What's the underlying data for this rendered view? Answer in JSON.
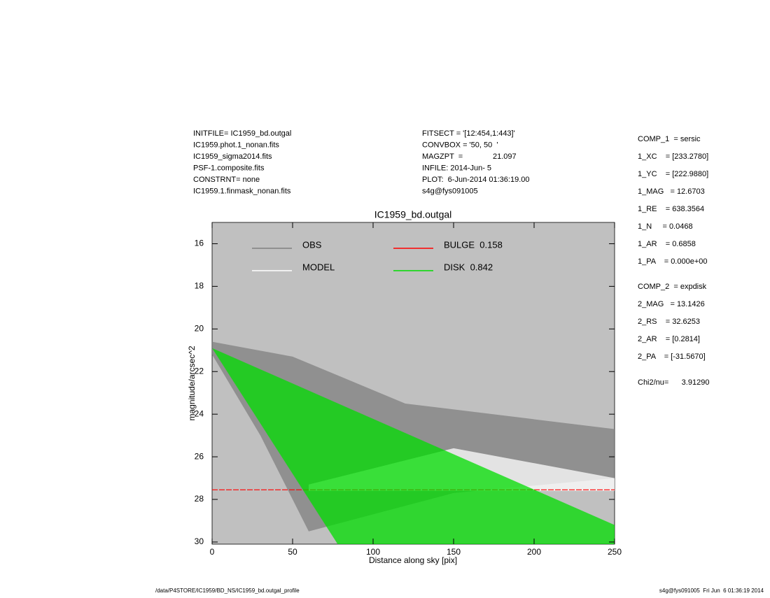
{
  "header": {
    "left": [
      "INITFILE= IC1959_bd.outgal",
      "IC1959.phot.1_nonan.fits",
      "IC1959_sigma2014.fits",
      "PSF-1.composite.fits",
      "CONSTRNT= none",
      "IC1959.1.finmask_nonan.fits"
    ],
    "middle": [
      "FITSECT = '[12:454,1:443]'",
      "CONVBOX = '50, 50  '",
      "MAGZPT  =              21.097",
      "INFILE: 2014-Jun- 5",
      "PLOT:  6-Jun-2014 01:36:19.00",
      "s4g@fys091005"
    ]
  },
  "params": {
    "comp1": [
      "COMP_1  = sersic",
      "1_XC    = [233.2780]",
      "1_YC    = [222.9880]",
      "1_MAG   = 12.6703",
      "1_RE    = 638.3564",
      "1_N     = 0.0468",
      "1_AR    = 0.6858",
      "1_PA    = 0.000e+00"
    ],
    "comp2": [
      "COMP_2  = expdisk",
      "2_MAG   = 13.1426",
      "2_RS    = 32.6253",
      "2_AR    = [0.2814]",
      "2_PA    = [-31.5670]"
    ],
    "chi2": "Chi2/nu=      3.91290"
  },
  "footer": {
    "left": "/data/P4STORE/IC1959/BD_NS/IC1959_bd.outgal_profile",
    "right": "s4g@fys091005  Fri Jun  6 01:36:19 2014"
  },
  "chart_data": {
    "type": "area",
    "title": "IC1959_bd.outgal",
    "x_label": "Distance along sky [pix]",
    "y_label": "magnitude/arcsec^2",
    "xlim": [
      0,
      250
    ],
    "ylim": [
      15,
      30.1
    ],
    "y_inverted": true,
    "xticks": [
      0,
      50,
      100,
      150,
      200,
      250
    ],
    "yticks": [
      16,
      18,
      20,
      22,
      24,
      26,
      28,
      30
    ],
    "background": "#c0c0c0",
    "series": [
      {
        "name": "OBS",
        "color": "#808080",
        "x": [
          0,
          50,
          120,
          250,
          250,
          150,
          60,
          30,
          0
        ],
        "values": [
          20.6,
          21.3,
          23.5,
          24.7,
          27.0,
          27.7,
          29.5,
          25.0,
          21.2
        ]
      },
      {
        "name": "MODEL",
        "color": "#ffffff",
        "x": [
          60,
          150,
          250,
          250,
          150,
          60
        ],
        "values": [
          27.3,
          25.6,
          27.0,
          27.6,
          27.6,
          27.6
        ]
      },
      {
        "name": "BULGE  0.158",
        "color": "#ff0000",
        "x": [
          0,
          250
        ],
        "values": [
          27.55,
          27.55
        ]
      },
      {
        "name": "DISK  0.842",
        "color": "#00dd00",
        "x": [
          0,
          250,
          250,
          78
        ],
        "values": [
          20.9,
          29.2,
          30.1,
          30.1
        ]
      }
    ]
  }
}
